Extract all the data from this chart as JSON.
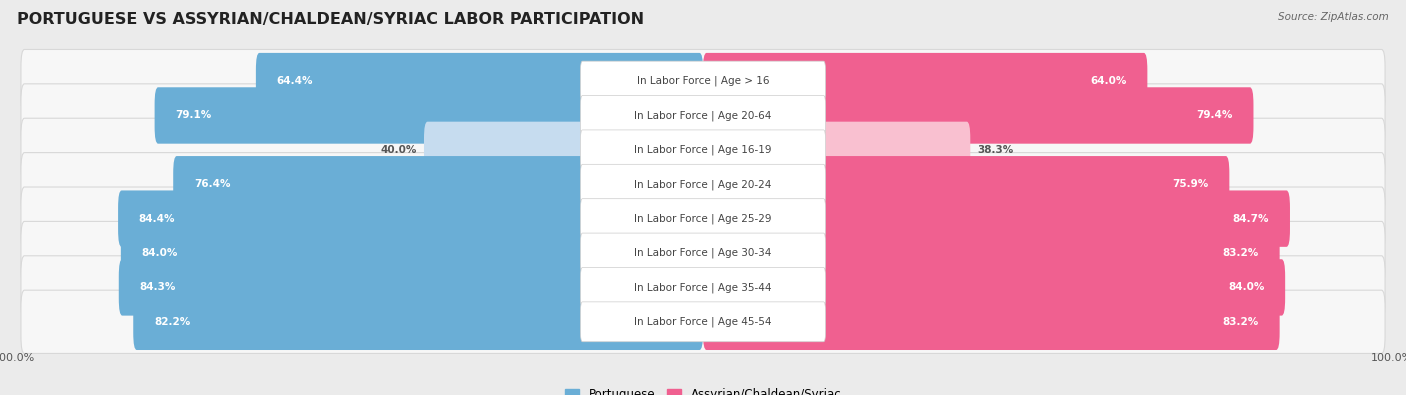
{
  "title": "PORTUGUESE VS ASSYRIAN/CHALDEAN/SYRIAC LABOR PARTICIPATION",
  "source": "Source: ZipAtlas.com",
  "categories": [
    "In Labor Force | Age > 16",
    "In Labor Force | Age 20-64",
    "In Labor Force | Age 16-19",
    "In Labor Force | Age 20-24",
    "In Labor Force | Age 25-29",
    "In Labor Force | Age 30-34",
    "In Labor Force | Age 35-44",
    "In Labor Force | Age 45-54"
  ],
  "portuguese_values": [
    64.4,
    79.1,
    40.0,
    76.4,
    84.4,
    84.0,
    84.3,
    82.2
  ],
  "assyrian_values": [
    64.0,
    79.4,
    38.3,
    75.9,
    84.7,
    83.2,
    84.0,
    83.2
  ],
  "portuguese_color": "#6aaed6",
  "assyrian_color": "#f06090",
  "portuguese_color_light": "#c6dcef",
  "assyrian_color_light": "#f9c0d0",
  "bg_color": "#ebebeb",
  "row_bg_color": "#f7f7f7",
  "row_border_color": "#d8d8d8",
  "label_color": "#444444",
  "value_color_white": "#ffffff",
  "value_color_dark": "#555555",
  "max_value": 100.0,
  "bar_height": 0.68,
  "title_fontsize": 11.5,
  "label_fontsize": 7.5,
  "value_fontsize": 7.5,
  "legend_fontsize": 8.5,
  "axis_label_fontsize": 8,
  "low_threshold": 50
}
